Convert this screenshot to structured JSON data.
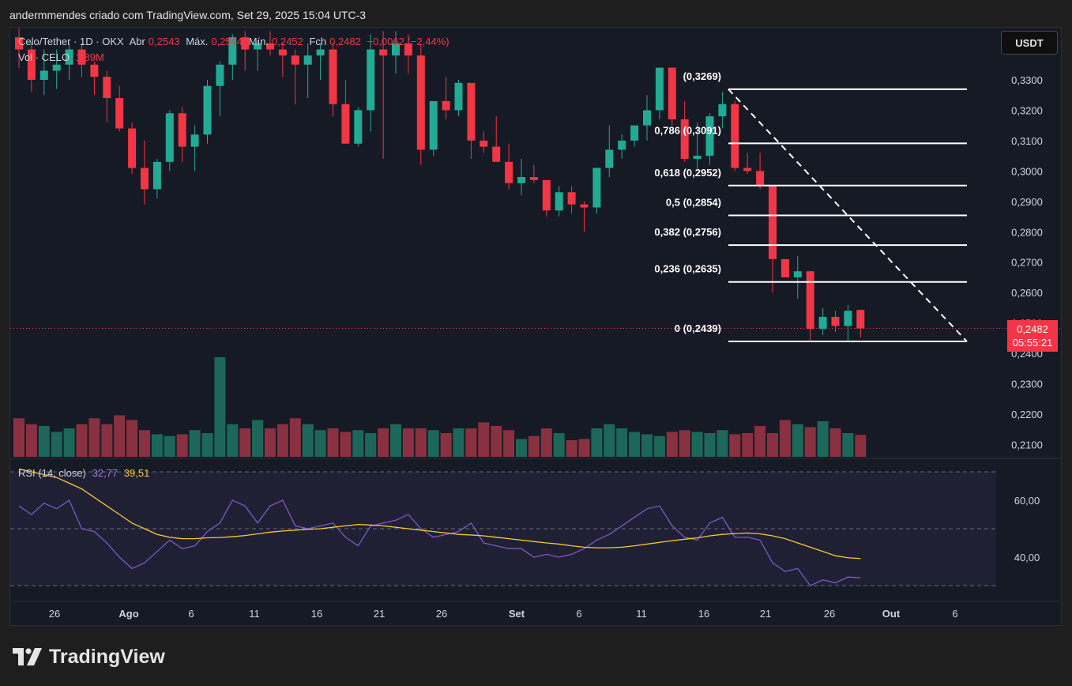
{
  "header": {
    "credit": "andermmendes criado com TradingView.com, Set 29, 2025 15:04 UTC-3"
  },
  "legend": {
    "symbol": "Celo/Tether · 1D · OKX",
    "open_label": "Abr",
    "open_value": "0,2543",
    "high_label": "Máx.",
    "high_value": "0,2544",
    "low_label": "Mín.",
    "low_value": "0,2452",
    "close_label": "Fch",
    "close_value": "0,2482",
    "change": "−0,0062 (−2,44%)",
    "vol_label": "Vol · CELO",
    "vol_value": "1,89M"
  },
  "rsi_legend": {
    "label": "RSI (14, close)",
    "rsi_value": "32,77",
    "ma_value": "39,51"
  },
  "currency_button": "USDT",
  "price_badge": {
    "price": "0,2482",
    "countdown": "05:55:21"
  },
  "footer": {
    "brand": "TradingView"
  },
  "colors": {
    "up": "#22ab94",
    "down": "#f23645",
    "rsi": "#7e57c2",
    "rsi_ma": "#f5c832",
    "background": "#161a25"
  },
  "chart_data": {
    "type": "candlestick",
    "x_tick_labels": [
      "26",
      "Ago",
      "6",
      "11",
      "16",
      "21",
      "26",
      "Set",
      "6",
      "11",
      "16",
      "21",
      "26",
      "Out",
      "6"
    ],
    "y_tick_labels": [
      "0,3300",
      "0,3200",
      "0,3100",
      "0,3000",
      "0,2900",
      "0,2800",
      "0,2700",
      "0,2600",
      "0,2500",
      "0,2400",
      "0,2300",
      "0,2200",
      "0,2100"
    ],
    "ylim": [
      0.2075,
      0.3435
    ],
    "candles": [
      [
        0.344,
        0.347,
        0.334,
        0.34
      ],
      [
        0.34,
        0.3425,
        0.326,
        0.33
      ],
      [
        0.33,
        0.34,
        0.325,
        0.333
      ],
      [
        0.333,
        0.34,
        0.327,
        0.335
      ],
      [
        0.335,
        0.342,
        0.33,
        0.34
      ],
      [
        0.34,
        0.342,
        0.331,
        0.335
      ],
      [
        0.335,
        0.336,
        0.325,
        0.331
      ],
      [
        0.331,
        0.333,
        0.316,
        0.324
      ],
      [
        0.324,
        0.328,
        0.313,
        0.314
      ],
      [
        0.314,
        0.316,
        0.299,
        0.301
      ],
      [
        0.301,
        0.31,
        0.289,
        0.294
      ],
      [
        0.294,
        0.304,
        0.291,
        0.303
      ],
      [
        0.303,
        0.32,
        0.3,
        0.319
      ],
      [
        0.319,
        0.321,
        0.303,
        0.308
      ],
      [
        0.308,
        0.315,
        0.3,
        0.312
      ],
      [
        0.312,
        0.33,
        0.309,
        0.328
      ],
      [
        0.328,
        0.336,
        0.318,
        0.335
      ],
      [
        0.335,
        0.345,
        0.33,
        0.344
      ],
      [
        0.344,
        0.346,
        0.333,
        0.34
      ],
      [
        0.34,
        0.343,
        0.333,
        0.342
      ],
      [
        0.342,
        0.346,
        0.338,
        0.34
      ],
      [
        0.34,
        0.342,
        0.331,
        0.338
      ],
      [
        0.338,
        0.34,
        0.322,
        0.335
      ],
      [
        0.335,
        0.342,
        0.324,
        0.338
      ],
      [
        0.338,
        0.342,
        0.33,
        0.34
      ],
      [
        0.34,
        0.342,
        0.318,
        0.322
      ],
      [
        0.322,
        0.33,
        0.309,
        0.309
      ],
      [
        0.309,
        0.321,
        0.308,
        0.32
      ],
      [
        0.32,
        0.345,
        0.313,
        0.34
      ],
      [
        0.34,
        0.346,
        0.304,
        0.338
      ],
      [
        0.338,
        0.346,
        0.332,
        0.342
      ],
      [
        0.342,
        0.345,
        0.332,
        0.338
      ],
      [
        0.338,
        0.342,
        0.302,
        0.307
      ],
      [
        0.307,
        0.323,
        0.305,
        0.323
      ],
      [
        0.323,
        0.331,
        0.317,
        0.32
      ],
      [
        0.32,
        0.33,
        0.318,
        0.329
      ],
      [
        0.329,
        0.329,
        0.304,
        0.31
      ],
      [
        0.31,
        0.313,
        0.306,
        0.308
      ],
      [
        0.308,
        0.318,
        0.304,
        0.303
      ],
      [
        0.303,
        0.309,
        0.294,
        0.296
      ],
      [
        0.296,
        0.304,
        0.292,
        0.298
      ],
      [
        0.298,
        0.302,
        0.296,
        0.297
      ],
      [
        0.297,
        0.297,
        0.285,
        0.287
      ],
      [
        0.287,
        0.295,
        0.285,
        0.293
      ],
      [
        0.293,
        0.295,
        0.286,
        0.289
      ],
      [
        0.289,
        0.29,
        0.28,
        0.288
      ],
      [
        0.288,
        0.301,
        0.286,
        0.301
      ],
      [
        0.301,
        0.315,
        0.298,
        0.307
      ],
      [
        0.307,
        0.312,
        0.304,
        0.31
      ],
      [
        0.31,
        0.315,
        0.308,
        0.315
      ],
      [
        0.315,
        0.325,
        0.31,
        0.32
      ],
      [
        0.32,
        0.334,
        0.317,
        0.334
      ],
      [
        0.334,
        0.334,
        0.315,
        0.317
      ],
      [
        0.317,
        0.323,
        0.303,
        0.304
      ],
      [
        0.304,
        0.316,
        0.3,
        0.305
      ],
      [
        0.305,
        0.319,
        0.302,
        0.318
      ],
      [
        0.318,
        0.326,
        0.314,
        0.322
      ],
      [
        0.322,
        0.323,
        0.3,
        0.301
      ],
      [
        0.301,
        0.306,
        0.299,
        0.3
      ],
      [
        0.3,
        0.306,
        0.294,
        0.295
      ],
      [
        0.295,
        0.295,
        0.26,
        0.271
      ],
      [
        0.271,
        0.271,
        0.265,
        0.265
      ],
      [
        0.265,
        0.272,
        0.258,
        0.267
      ],
      [
        0.267,
        0.267,
        0.244,
        0.248
      ],
      [
        0.248,
        0.255,
        0.246,
        0.252
      ],
      [
        0.252,
        0.254,
        0.247,
        0.249
      ],
      [
        0.249,
        0.256,
        0.244,
        0.254
      ],
      [
        0.2543,
        0.2544,
        0.2452,
        0.2482
      ]
    ],
    "volume_relative": [
      0.65,
      0.55,
      0.52,
      0.42,
      0.48,
      0.55,
      0.65,
      0.55,
      0.7,
      0.62,
      0.45,
      0.38,
      0.35,
      0.38,
      0.45,
      0.4,
      0.45,
      0.55,
      0.48,
      0.62,
      0.48,
      0.55,
      0.65,
      0.55,
      0.45,
      0.48,
      0.42,
      0.45,
      0.4,
      0.48,
      0.55,
      0.48,
      0.48,
      0.45,
      0.4,
      0.48,
      0.48,
      0.58,
      0.52,
      0.45,
      0.3,
      0.35,
      0.48,
      0.4,
      0.28,
      0.3,
      0.48,
      0.55,
      0.48,
      0.42,
      0.38,
      0.35,
      0.42,
      0.45,
      0.42,
      0.4,
      0.45,
      0.38,
      0.4,
      0.52,
      0.4,
      0.62,
      0.55,
      0.5,
      0.6,
      0.48,
      0.4,
      0.37
    ],
    "volume_spike": {
      "index": 16,
      "relative": 1.68
    },
    "current_price": 0.2482,
    "fibonacci": {
      "levels": [
        {
          "label": "0 (0,2439)",
          "value": 0.2439
        },
        {
          "label": "0,236 (0,2635)",
          "value": 0.2635
        },
        {
          "label": "0,382 (0,2756)",
          "value": 0.2756
        },
        {
          "label": "0,5 (0,2854)",
          "value": 0.2854
        },
        {
          "label": "0,618 (0,2952)",
          "value": 0.2952
        },
        {
          "label": "0,786 (0,3091)",
          "value": 0.3091
        },
        {
          "label": "(0,3269)",
          "value": 0.3269
        }
      ]
    },
    "rsi": {
      "y_tick_labels": [
        "60,00",
        "40,00"
      ],
      "upper_band": 70,
      "middle": 50,
      "lower_band": 30,
      "values": [
        58,
        55,
        59,
        57,
        60,
        50,
        49,
        45,
        40,
        36,
        38,
        42,
        46,
        43,
        44,
        49,
        52,
        60,
        58,
        52,
        58,
        60,
        51,
        50,
        51,
        52,
        47,
        44,
        51,
        52,
        53,
        55,
        50,
        47,
        48,
        49,
        52,
        45,
        44,
        43,
        43,
        40,
        41,
        40,
        41,
        43,
        46,
        48,
        51,
        54,
        57,
        58,
        51,
        47,
        46,
        52,
        54,
        47,
        47,
        46,
        38,
        35,
        36,
        30,
        32,
        31,
        33,
        32.77
      ],
      "ma_values": [
        71,
        70,
        69,
        68,
        66,
        64,
        61,
        58,
        55,
        52,
        50,
        48,
        47,
        46.5,
        46.5,
        46.8,
        46.9,
        47.2,
        47.6,
        48.2,
        48.8,
        49.2,
        49.5,
        49.8,
        50,
        50.5,
        51,
        51.5,
        51.3,
        51,
        50.5,
        50,
        49.5,
        49,
        48.5,
        48,
        47.8,
        47.5,
        47,
        46.5,
        46,
        45.5,
        45,
        44.6,
        44,
        43.5,
        43.3,
        43.3,
        43.5,
        44,
        44.6,
        45.2,
        45.8,
        46.3,
        46.8,
        47.5,
        48,
        48.3,
        48.5,
        48.2,
        47.5,
        46.5,
        45,
        43.5,
        42,
        40.5,
        39.8,
        39.51
      ]
    }
  }
}
